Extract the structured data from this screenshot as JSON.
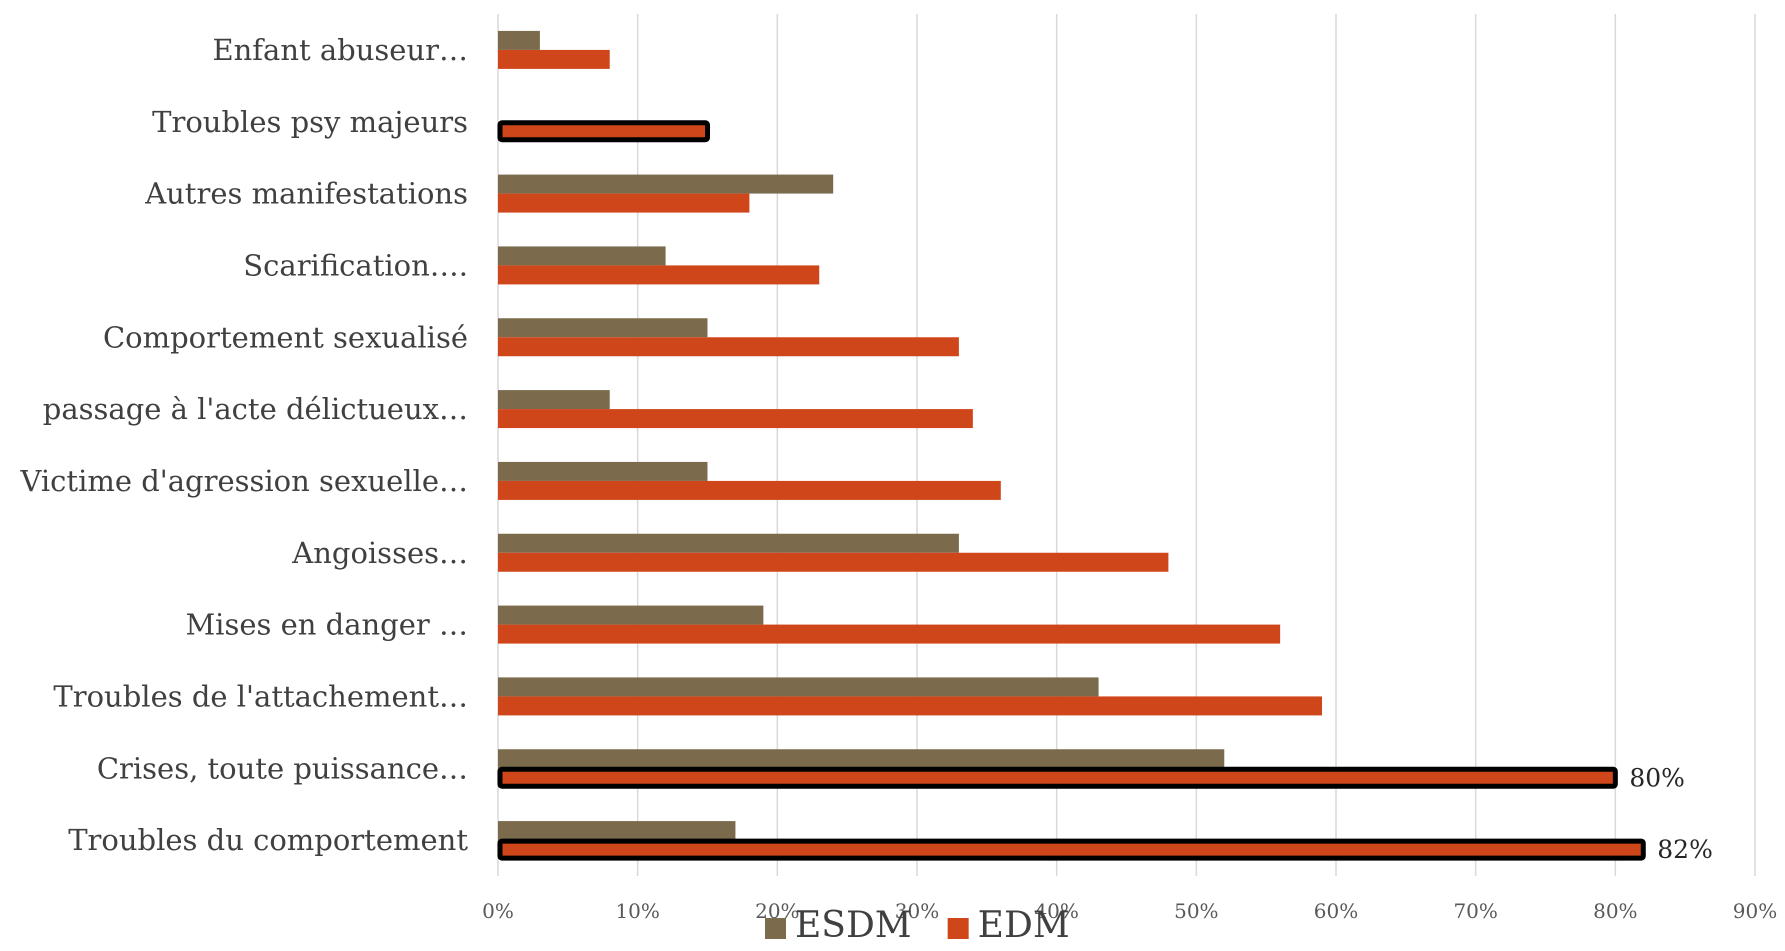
{
  "chart_data": {
    "type": "bar",
    "orientation": "horizontal",
    "categories": [
      "Troubles du comportement",
      "Crises, toute puissance…",
      "Troubles de l'attachement…",
      "Mises en danger …",
      "Angoisses…",
      "Victime d'agression sexuelle…",
      "passage à l'acte délictueux…",
      "Comportement sexualisé",
      "Scarification….",
      "Autres manifestations",
      "Troubles psy majeurs",
      "Enfant abuseur…"
    ],
    "series": [
      {
        "name": "ESDM",
        "color": "#7b6a4c",
        "values": [
          17,
          52,
          43,
          19,
          33,
          15,
          8,
          15,
          12,
          24,
          0,
          3
        ]
      },
      {
        "name": "EDM",
        "color": "#d0461b",
        "values": [
          82,
          80,
          59,
          56,
          48,
          36,
          34,
          33,
          23,
          18,
          15,
          8
        ]
      }
    ],
    "highlighted": [
      {
        "series": "EDM",
        "category_index": 0
      },
      {
        "series": "EDM",
        "category_index": 1
      },
      {
        "series": "EDM",
        "category_index": 10
      }
    ],
    "data_labels": [
      {
        "series": "EDM",
        "category_index": 0,
        "text": "82%"
      },
      {
        "series": "EDM",
        "category_index": 1,
        "text": "80%"
      }
    ],
    "xlim": [
      0,
      90
    ],
    "x_ticks": [
      "0%",
      "10%",
      "20%",
      "30%",
      "40%",
      "50%",
      "60%",
      "70%",
      "80%",
      "90%"
    ],
    "grid": true,
    "legend_position": "bottom",
    "title": "",
    "xlabel": "",
    "ylabel": ""
  }
}
